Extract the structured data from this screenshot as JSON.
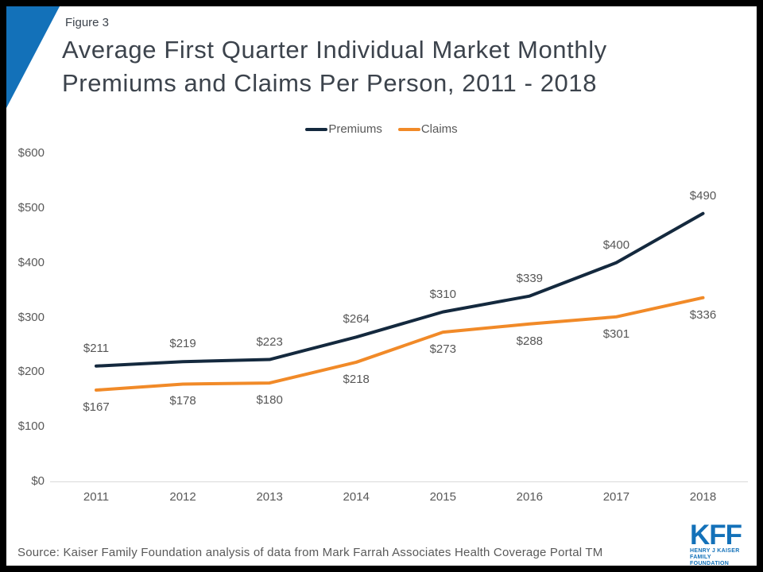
{
  "slide": {
    "figure_label": "Figure 3",
    "title_line1": "Average First Quarter Individual Market Monthly",
    "title_line2": "Premiums and Claims Per Person, 2011 - 2018",
    "source": "Source: Kaiser Family Foundation analysis of data from Mark Farrah Associates Health Coverage Portal TM",
    "logo": {
      "text": "KFF",
      "subtext_line1": "HENRY J KAISER",
      "subtext_line2": "FAMILY FOUNDATION"
    }
  },
  "colors": {
    "premiums_line": "#14293E",
    "claims_line": "#F18A28",
    "accent_blue": "#1371B9",
    "title_text": "#3C434C",
    "axis_text": "#595959",
    "axis_line": "#D9D9D9"
  },
  "chart_data": {
    "type": "line",
    "title": "Average First Quarter Individual Market Monthly Premiums and Claims Per Person, 2011 - 2018",
    "categories": [
      "2011",
      "2012",
      "2013",
      "2014",
      "2015",
      "2016",
      "2017",
      "2018"
    ],
    "series": [
      {
        "name": "Premiums",
        "color": "#14293E",
        "values": [
          211,
          219,
          223,
          264,
          310,
          339,
          400,
          490
        ],
        "labels": [
          "$211",
          "$219",
          "$223",
          "$264",
          "$310",
          "$339",
          "$400",
          "$490"
        ],
        "label_position": "above"
      },
      {
        "name": "Claims",
        "color": "#F18A28",
        "values": [
          167,
          178,
          180,
          218,
          273,
          288,
          301,
          336
        ],
        "labels": [
          "$167",
          "$178",
          "$180",
          "$218",
          "$273",
          "$288",
          "$301",
          "$336"
        ],
        "label_position": "below"
      }
    ],
    "xlabel": "",
    "ylabel": "",
    "ylim": [
      0,
      600
    ],
    "y_ticks": [
      "$0",
      "$100",
      "$200",
      "$300",
      "$400",
      "$500",
      "$600"
    ],
    "grid": false,
    "legend_position": "top-center"
  }
}
